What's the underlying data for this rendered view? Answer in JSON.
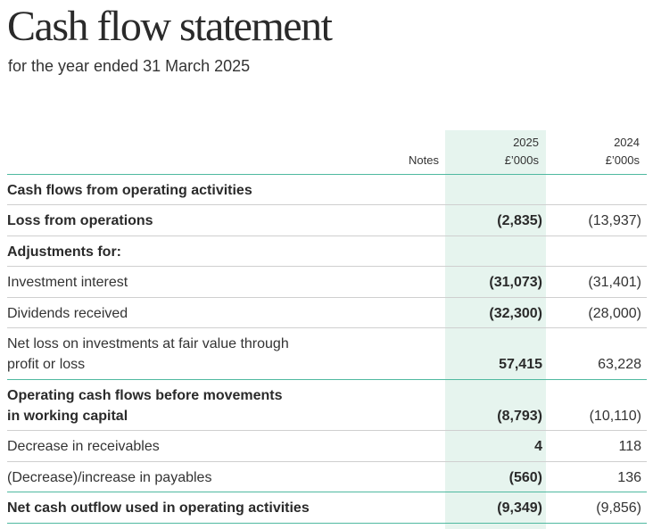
{
  "header": {
    "title": "Cash flow statement",
    "subtitle": "for the year ended 31 March 2025"
  },
  "columns": {
    "notes": "Notes",
    "current": {
      "year": "2025",
      "unit": "£’000s"
    },
    "prior": {
      "year": "2024",
      "unit": "£’000s"
    }
  },
  "colors": {
    "highlight_column": "#e6f4ee",
    "accent_rule": "#4fb9a0",
    "divider": "#cfcfcf"
  },
  "rows": [
    {
      "label": "Cash flows from operating activities",
      "current": "",
      "prior": ""
    },
    {
      "label": "Loss from operations",
      "current": "(2,835)",
      "prior": "(13,937)"
    },
    {
      "label": "Adjustments for:",
      "current": "",
      "prior": ""
    },
    {
      "label": "Investment interest",
      "current": "(31,073)",
      "prior": "(31,401)"
    },
    {
      "label": "Dividends received",
      "current": "(32,300)",
      "prior": "(28,000)"
    },
    {
      "label_lines": [
        "Net loss on investments at fair value through",
        "profit or loss"
      ],
      "current": "57,415",
      "prior": "63,228"
    },
    {
      "label_lines": [
        "Operating cash flows before movements",
        "in working capital"
      ],
      "current": "(8,793)",
      "prior": "(10,110)"
    },
    {
      "label": "Decrease in receivables",
      "current": "4",
      "prior": "118"
    },
    {
      "label": "(Decrease)/increase in payables",
      "current": "(560)",
      "prior": "136"
    },
    {
      "label": "Net cash outflow used in operating activities",
      "current": "(9,349)",
      "prior": "(9,856)"
    }
  ]
}
